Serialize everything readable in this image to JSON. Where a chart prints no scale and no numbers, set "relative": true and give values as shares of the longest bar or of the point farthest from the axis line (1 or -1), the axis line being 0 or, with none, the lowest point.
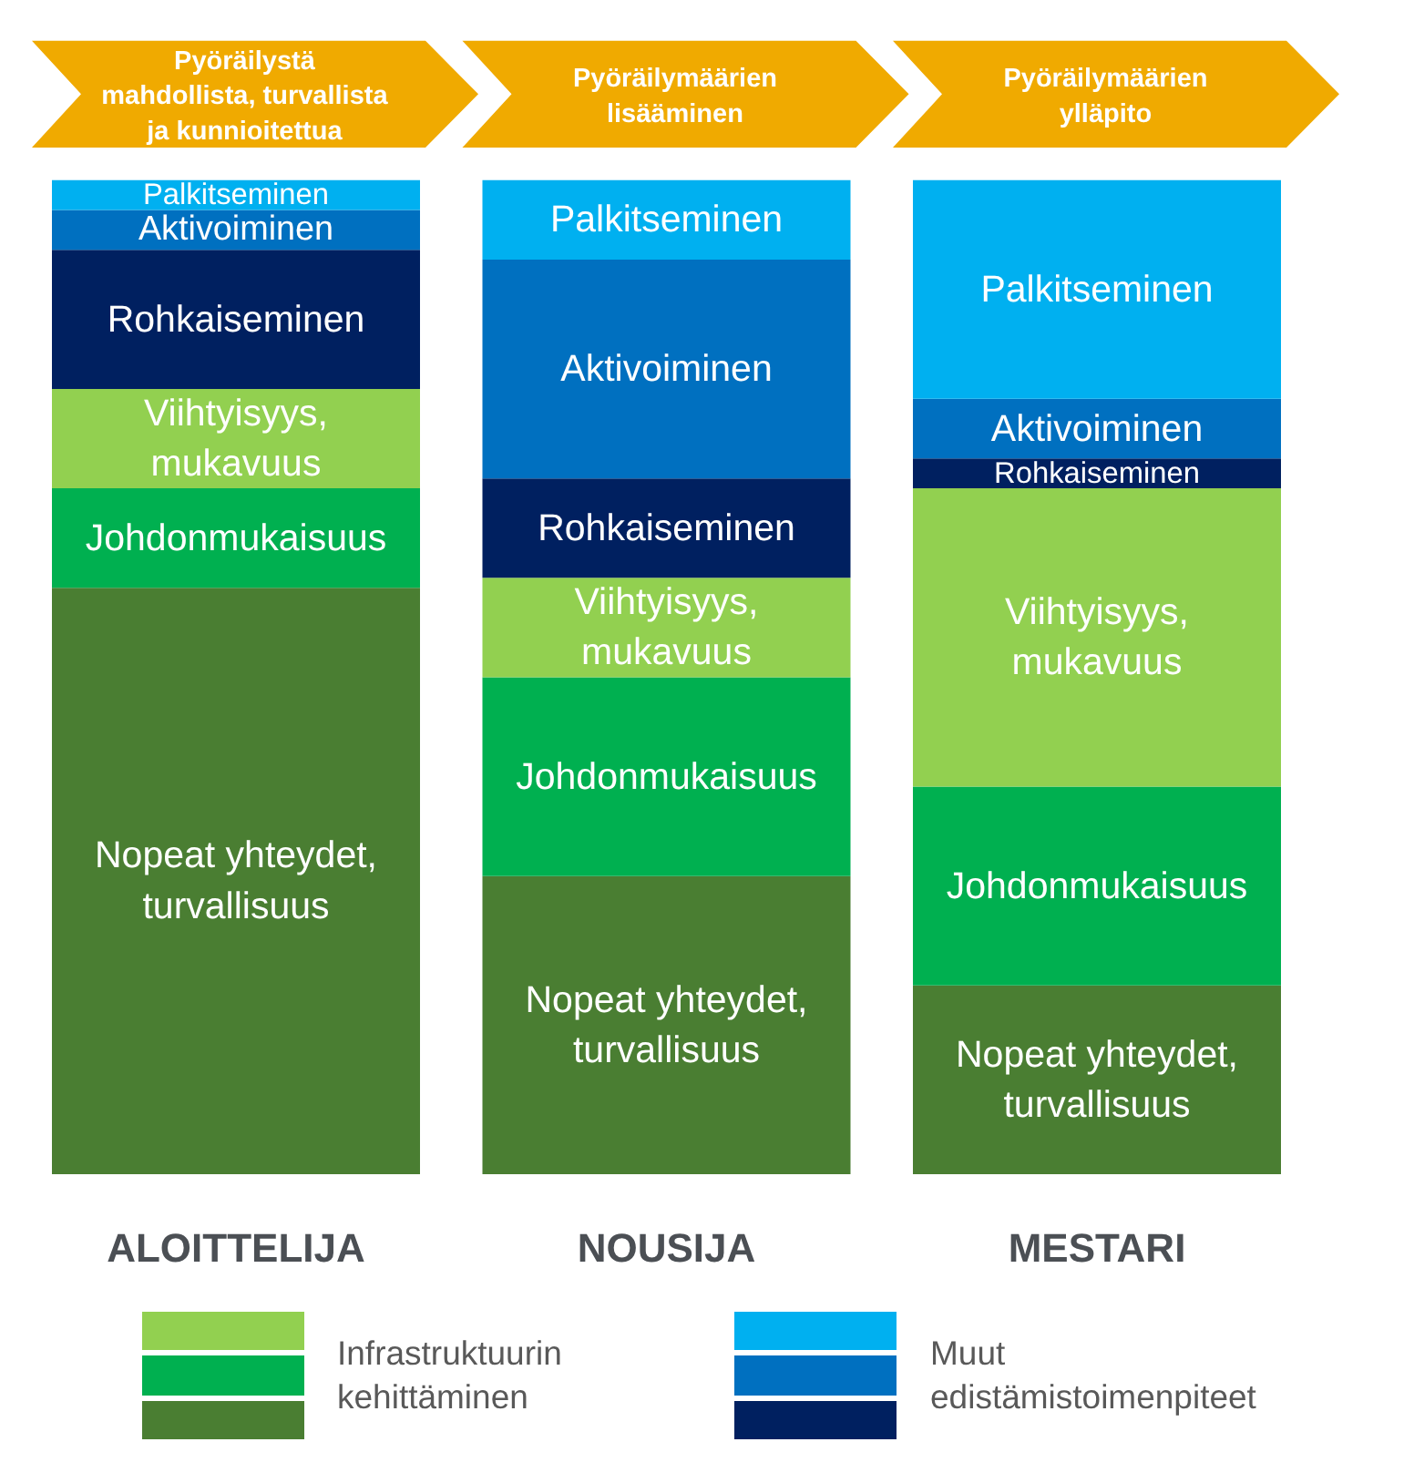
{
  "chart_data": {
    "type": "bar",
    "stacked": true,
    "relative": true,
    "categories": [
      "ALOITTELIJA",
      "NOUSIJA",
      "MESTARI"
    ],
    "series": [
      {
        "name": "Nopeat yhteydet,\nturvallisuus",
        "color": "#4a7e32",
        "values": [
          0.59,
          0.3,
          0.19
        ]
      },
      {
        "name": "Johdonmukaisuus",
        "color": "#00b050",
        "values": [
          0.1,
          0.2,
          0.2
        ]
      },
      {
        "name": "Viihtyisyys,\nmukavuus",
        "color": "#92d050",
        "values": [
          0.1,
          0.1,
          0.3
        ]
      },
      {
        "name": "Rohkaiseminen",
        "color": "#002060",
        "values": [
          0.14,
          0.1,
          0.03
        ]
      },
      {
        "name": "Aktivoiminen",
        "color": "#0070c0",
        "values": [
          0.04,
          0.22,
          0.06
        ]
      },
      {
        "name": "Palkitseminen",
        "color": "#00b0f0",
        "values": [
          0.03,
          0.08,
          0.22
        ]
      }
    ],
    "annotations": [
      "Pyöräilystä\nmahdollista, turvallista\nja kunnioitettua",
      "Pyöräilymäärien\nlisääminen",
      "Pyöräilymäärien\nylläpito",
      "Infrastruktuurin\nkehittäminen",
      "Muut\nedistämistoimenpiteet"
    ]
  }
}
